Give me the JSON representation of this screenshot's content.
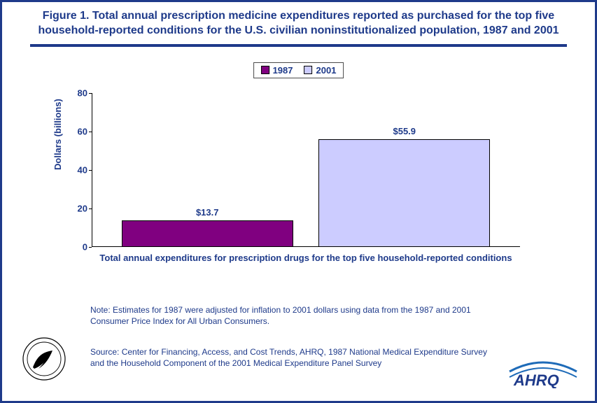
{
  "title": "Figure 1. Total annual prescription medicine expenditures reported as purchased for the top five household-reported conditions for the U.S. civilian noninstitutionalized population, 1987 and 2001",
  "legend": {
    "series": [
      {
        "label": "1987",
        "color": "#800080"
      },
      {
        "label": "2001",
        "color": "#ccccff"
      }
    ]
  },
  "chart": {
    "type": "bar",
    "ylabel": "Dollars (billions)",
    "xlabel": "Total annual expenditures for prescription drugs for the top five household-reported conditions",
    "ylim": [
      0,
      80
    ],
    "ytick_step": 20,
    "yticks": [
      0,
      20,
      40,
      60,
      80
    ],
    "bars": [
      {
        "label": "$13.7",
        "value": 13.7,
        "color": "#800080",
        "left_pct": 7,
        "width_pct": 40
      },
      {
        "label": "$55.9",
        "value": 55.9,
        "color": "#ccccff",
        "left_pct": 53,
        "width_pct": 40
      }
    ],
    "axis_color": "#000000",
    "tick_fontsize": 13,
    "label_fontsize": 13,
    "title_color": "#1e3a8a",
    "background_color": "#ffffff"
  },
  "note": "Note: Estimates for 1987 were adjusted for inflation to 2001 dollars using data from the 1987 and 2001 Consumer Price Index for All Urban Consumers.",
  "source": "Source: Center for Financing, Access, and Cost Trends, AHRQ, 1987 National Medical Expenditure Survey and the Household Component of the 2001 Medical Expenditure Panel Survey",
  "logos": {
    "hhs_alt": "HHS seal",
    "ahrq_alt": "AHRQ",
    "ahrq_text": "AHRQ"
  },
  "colors": {
    "frame": "#1e3a8a",
    "text_primary": "#1e3a8a"
  }
}
